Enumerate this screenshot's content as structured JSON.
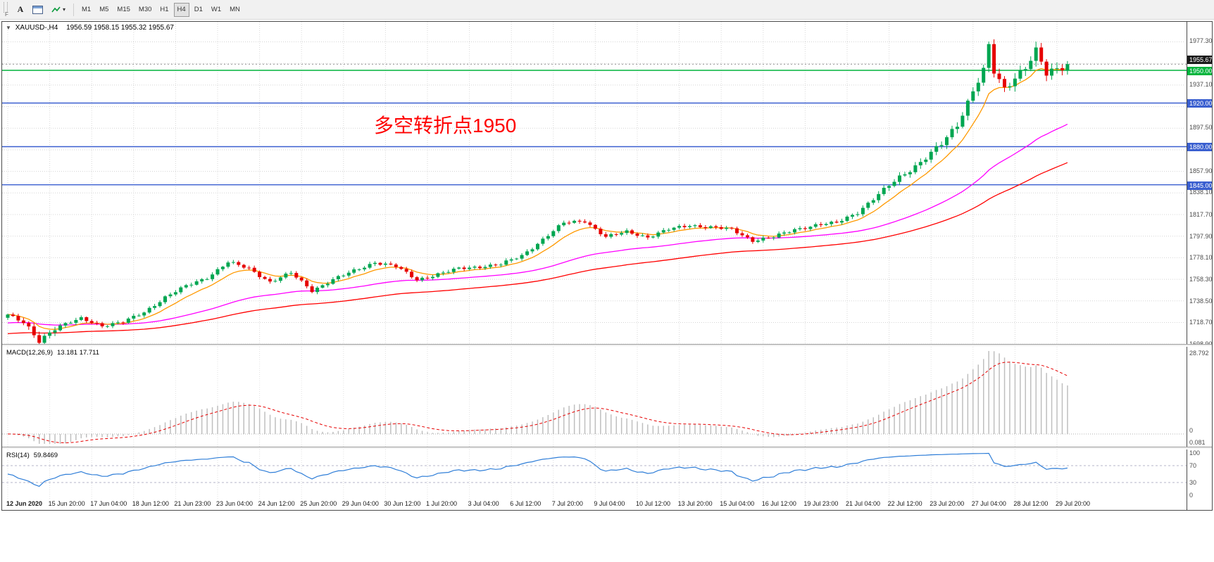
{
  "icons": {
    "collapse": "▼",
    "caret": "▾"
  },
  "toolbar": {
    "text_tool_label": "A",
    "side_label": "F",
    "timeframes": [
      "M1",
      "M5",
      "M15",
      "M30",
      "H1",
      "H4",
      "D1",
      "W1",
      "MN"
    ],
    "active_timeframe": "H4"
  },
  "quote": {
    "symbol": "XAUUSD-,H4",
    "open": "1956.59",
    "high": "1958.15",
    "low": "1955.32",
    "close": "1955.67",
    "ohlc": "1956.59 1958.15 1955.32 1955.67"
  },
  "annotation": {
    "text": "多空转折点1950",
    "color": "#ff0000"
  },
  "chart_data": {
    "type": "candlestick",
    "symbol": "XAUUSD",
    "timeframe": "H4",
    "candle_count": 203,
    "price_range": [
      1699.0,
      1994.5
    ],
    "grid_step": 19.8,
    "grid_base": 1698.9,
    "up_color": "#00a651",
    "down_color": "#e60000",
    "ma_colors": [
      "#ff9900",
      "#ff00ff",
      "#ff0000"
    ],
    "price_anchors": [
      [
        0,
        1726
      ],
      [
        3,
        1718
      ],
      [
        6,
        1702
      ],
      [
        9,
        1714
      ],
      [
        14,
        1722
      ],
      [
        18,
        1716
      ],
      [
        22,
        1719
      ],
      [
        26,
        1728
      ],
      [
        30,
        1742
      ],
      [
        34,
        1752
      ],
      [
        38,
        1760
      ],
      [
        42,
        1774
      ],
      [
        46,
        1768
      ],
      [
        50,
        1756
      ],
      [
        54,
        1764
      ],
      [
        58,
        1748
      ],
      [
        62,
        1758
      ],
      [
        66,
        1766
      ],
      [
        70,
        1774
      ],
      [
        74,
        1770
      ],
      [
        78,
        1758
      ],
      [
        82,
        1763
      ],
      [
        86,
        1768
      ],
      [
        90,
        1770
      ],
      [
        94,
        1772
      ],
      [
        98,
        1780
      ],
      [
        102,
        1795
      ],
      [
        106,
        1810
      ],
      [
        110,
        1812
      ],
      [
        114,
        1797
      ],
      [
        118,
        1802
      ],
      [
        122,
        1797
      ],
      [
        126,
        1804
      ],
      [
        130,
        1808
      ],
      [
        134,
        1806
      ],
      [
        138,
        1804
      ],
      [
        142,
        1794
      ],
      [
        146,
        1797
      ],
      [
        150,
        1804
      ],
      [
        154,
        1808
      ],
      [
        158,
        1810
      ],
      [
        162,
        1820
      ],
      [
        166,
        1836
      ],
      [
        170,
        1852
      ],
      [
        174,
        1866
      ],
      [
        178,
        1882
      ],
      [
        181,
        1900
      ],
      [
        184,
        1932
      ],
      [
        186,
        1950
      ],
      [
        187,
        1972
      ],
      [
        188,
        1948
      ],
      [
        190,
        1932
      ],
      [
        192,
        1944
      ],
      [
        194,
        1954
      ],
      [
        196,
        1968
      ],
      [
        198,
        1946
      ],
      [
        200,
        1950
      ],
      [
        202,
        1955.67
      ]
    ],
    "x_label_step": 8,
    "x_labels": [
      "12 Jun 2020",
      "15 Jun 20:00",
      "17 Jun 04:00",
      "18 Jun 12:00",
      "21 Jun 23:00",
      "23 Jun 04:00",
      "24 Jun 12:00",
      "25 Jun 20:00",
      "29 Jun 04:00",
      "30 Jun 12:00",
      "1 Jul 20:00",
      "3 Jul 04:00",
      "6 Jul 12:00",
      "7 Jul 20:00",
      "9 Jul 04:00",
      "10 Jul 12:00",
      "13 Jul 20:00",
      "15 Jul 04:00",
      "16 Jul 12:00",
      "19 Jul 23:00",
      "21 Jul 04:00",
      "22 Jul 12:00",
      "23 Jul 20:00",
      "27 Jul 04:00",
      "28 Jul 12:00",
      "29 Jul 20:00"
    ],
    "y_axis_labels": [
      "1977.30",
      "1937.10",
      "1897.50",
      "1857.90",
      "1838.10",
      "1817.70",
      "1797.90",
      "1778.10",
      "1758.30",
      "1738.50",
      "1718.70",
      "1698.90"
    ],
    "levels": [
      {
        "label": "1950.00",
        "value": 1950.0,
        "color": "#00b43c"
      },
      {
        "label": "1920.00",
        "value": 1920.0,
        "color": "#3a5fd0"
      },
      {
        "label": "1880.00",
        "value": 1880.0,
        "color": "#3a5fd0"
      },
      {
        "label": "1845.00",
        "value": 1845.0,
        "color": "#3a5fd0"
      }
    ],
    "current_price": {
      "label": "1955.67",
      "value": 1955.67,
      "bg": "#1a1a1a"
    }
  },
  "macd": {
    "label": "MACD(12,26,9)",
    "values": "13.181 17.711",
    "axis": [
      "28.792",
      "0",
      "0.081"
    ],
    "hist_color": "#bfbfbf",
    "signal_color": "#e60000"
  },
  "rsi": {
    "label": "RSI(14)",
    "value": "59.8469",
    "axis": [
      "100",
      "70",
      "30",
      "0"
    ],
    "level_values": [
      70,
      30
    ],
    "line_color": "#2f7ed8"
  }
}
